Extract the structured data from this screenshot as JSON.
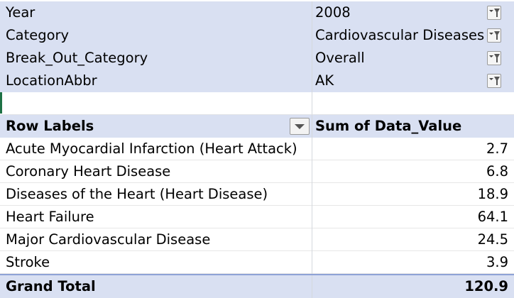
{
  "filters": [
    {
      "field": "Year",
      "value": "2008"
    },
    {
      "field": "Category",
      "value": "Cardiovascular Diseases"
    },
    {
      "field": "Break_Out_Category",
      "value": "Overall"
    },
    {
      "field": "LocationAbbr",
      "value": "AK"
    }
  ],
  "pivot": {
    "row_labels_header": "Row Labels",
    "value_header": "Sum of Data_Value",
    "rows": [
      {
        "label": "Acute Myocardial Infarction (Heart Attack)",
        "value": "2.7"
      },
      {
        "label": "Coronary Heart Disease",
        "value": "6.8"
      },
      {
        "label": "Diseases of the Heart (Heart Disease)",
        "value": "18.9"
      },
      {
        "label": "Heart Failure",
        "value": "64.1"
      },
      {
        "label": "Major Cardiovascular Disease",
        "value": "24.5"
      },
      {
        "label": "Stroke",
        "value": "3.9"
      }
    ],
    "grand_total_label": "Grand Total",
    "grand_total_value": "120.9"
  },
  "icons": {
    "filter_button": "filter-dropdown-icon",
    "row_labels_dropdown": "dropdown-arrow-icon"
  }
}
